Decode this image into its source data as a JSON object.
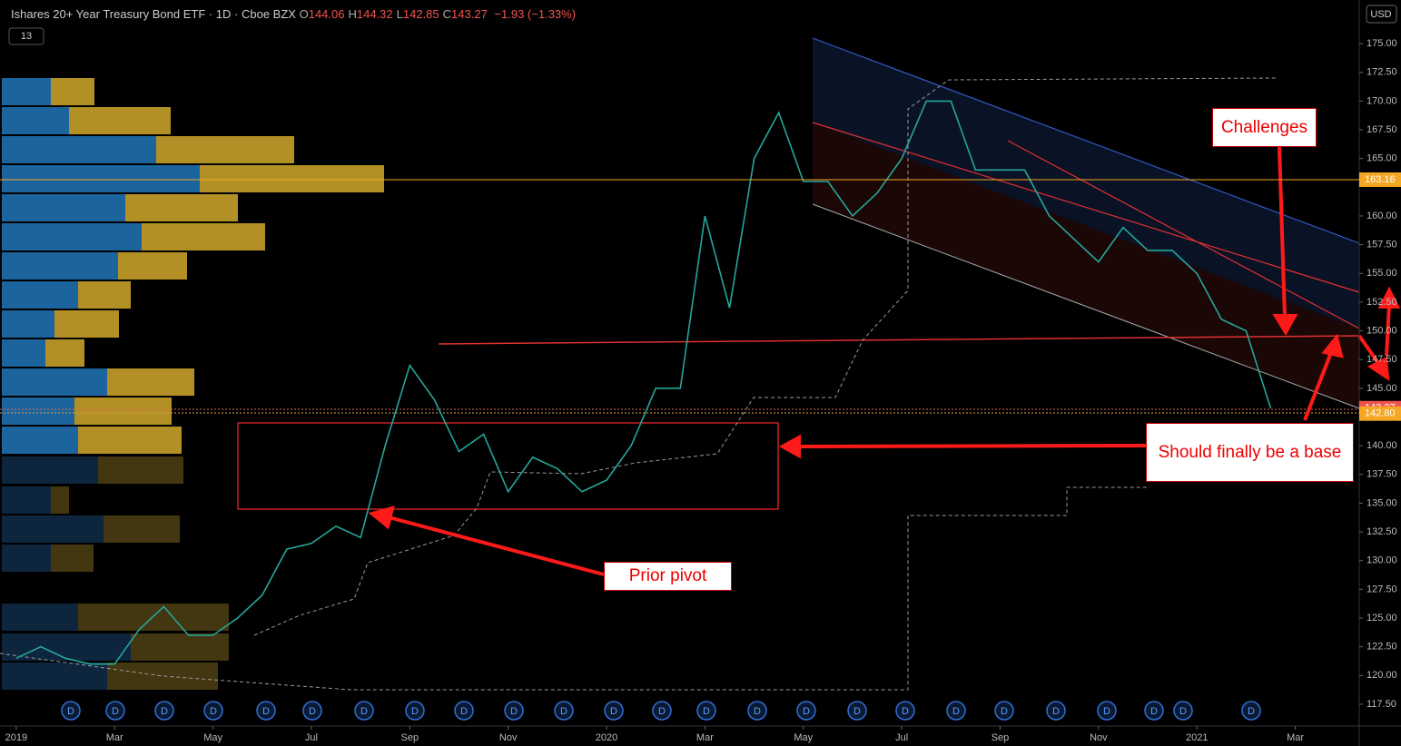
{
  "header": {
    "title": "Ishares 20+ Year Treasury Bond ETF · 1D · Cboe BZX",
    "ohlc": [
      {
        "label": "O",
        "value": 144.06
      },
      {
        "label": "H",
        "value": 144.32
      },
      {
        "label": "L",
        "value": 142.85
      },
      {
        "label": "C",
        "value": 143.27
      }
    ],
    "change": "−1.93 (−1.33%)"
  },
  "currency": "USD",
  "indicator_count": "13",
  "annotations": [
    "Challenges",
    "Should finally be a base",
    "Prior pivot"
  ],
  "dividend_marker": "D",
  "chart_data": {
    "type": "line",
    "color": "#26a69a",
    "x": [
      0,
      0.5,
      1,
      1.5,
      2,
      2.5,
      3,
      3.5,
      4,
      4.5,
      5,
      5.5,
      6,
      6.5,
      7,
      7.5,
      8,
      8.5,
      9,
      9.5,
      10,
      10.5,
      11,
      11.5,
      12,
      12.5,
      13,
      13.5,
      14,
      14.5,
      15,
      15.5,
      16,
      16.5,
      17,
      17.5,
      18,
      18.5,
      19,
      19.5,
      20,
      20.5,
      21,
      21.5,
      22,
      22.5,
      23,
      23.5,
      24,
      24.5,
      25,
      25.5
    ],
    "values": [
      121.5,
      122.5,
      121.5,
      121,
      121,
      124,
      126,
      123.5,
      123.5,
      125,
      127,
      131,
      131.5,
      133,
      132,
      140,
      147,
      144,
      139.5,
      141,
      136,
      139,
      138,
      136,
      137,
      140,
      145,
      145,
      160,
      152,
      165,
      169,
      163,
      163,
      160,
      162,
      165,
      170,
      170,
      164,
      164,
      164,
      160,
      158,
      156,
      159,
      157,
      157,
      155,
      151,
      150,
      143.27
    ],
    "xlim": [
      -0.33,
      27.3
    ],
    "ylim": [
      115.6,
      178.8
    ],
    "xticks": [
      {
        "value": 0,
        "label": "2019"
      },
      {
        "value": 2,
        "label": "Mar"
      },
      {
        "value": 4,
        "label": "May"
      },
      {
        "value": 6,
        "label": "Jul"
      },
      {
        "value": 8,
        "label": "Sep"
      },
      {
        "value": 10,
        "label": "Nov"
      },
      {
        "value": 12,
        "label": "2020"
      },
      {
        "value": 14,
        "label": "Mar"
      },
      {
        "value": 16,
        "label": "May"
      },
      {
        "value": 18,
        "label": "Jul"
      },
      {
        "value": 20,
        "label": "Sep"
      },
      {
        "value": 22,
        "label": "Nov"
      },
      {
        "value": 24,
        "label": "2021"
      },
      {
        "value": 26,
        "label": "Mar"
      }
    ],
    "yticks": [
      {
        "value": 117.5,
        "label": "117.50"
      },
      {
        "value": 120,
        "label": "120.00"
      },
      {
        "value": 122.5,
        "label": "122.50"
      },
      {
        "value": 125,
        "label": "125.00"
      },
      {
        "value": 127.5,
        "label": "127.50"
      },
      {
        "value": 130,
        "label": "130.00"
      },
      {
        "value": 132.5,
        "label": "132.50"
      },
      {
        "value": 135,
        "label": "135.00"
      },
      {
        "value": 137.5,
        "label": "137.50"
      },
      {
        "value": 140,
        "label": "140.00"
      },
      {
        "value": 145,
        "label": "145.00"
      },
      {
        "value": 147.5,
        "label": "147.50"
      },
      {
        "value": 150,
        "label": "150.00"
      },
      {
        "value": 152.5,
        "label": "152.50"
      },
      {
        "value": 155,
        "label": "155.00"
      },
      {
        "value": 157.5,
        "label": "157.50"
      },
      {
        "value": 160,
        "label": "160.00"
      },
      {
        "value": 165,
        "label": "165.00"
      },
      {
        "value": 167.5,
        "label": "167.50"
      },
      {
        "value": 170,
        "label": "170.00"
      },
      {
        "value": 172.5,
        "label": "172.50"
      },
      {
        "value": 175,
        "label": "175.00"
      }
    ],
    "price_badges": [
      {
        "value": 163.16,
        "label": "163.16",
        "color": "#f5a623"
      },
      {
        "value": 143.27,
        "label": "143.27",
        "color": "#ef5350"
      },
      {
        "value": 142.8,
        "label": "142.80",
        "color": "#f5a623"
      }
    ],
    "grid": false
  }
}
